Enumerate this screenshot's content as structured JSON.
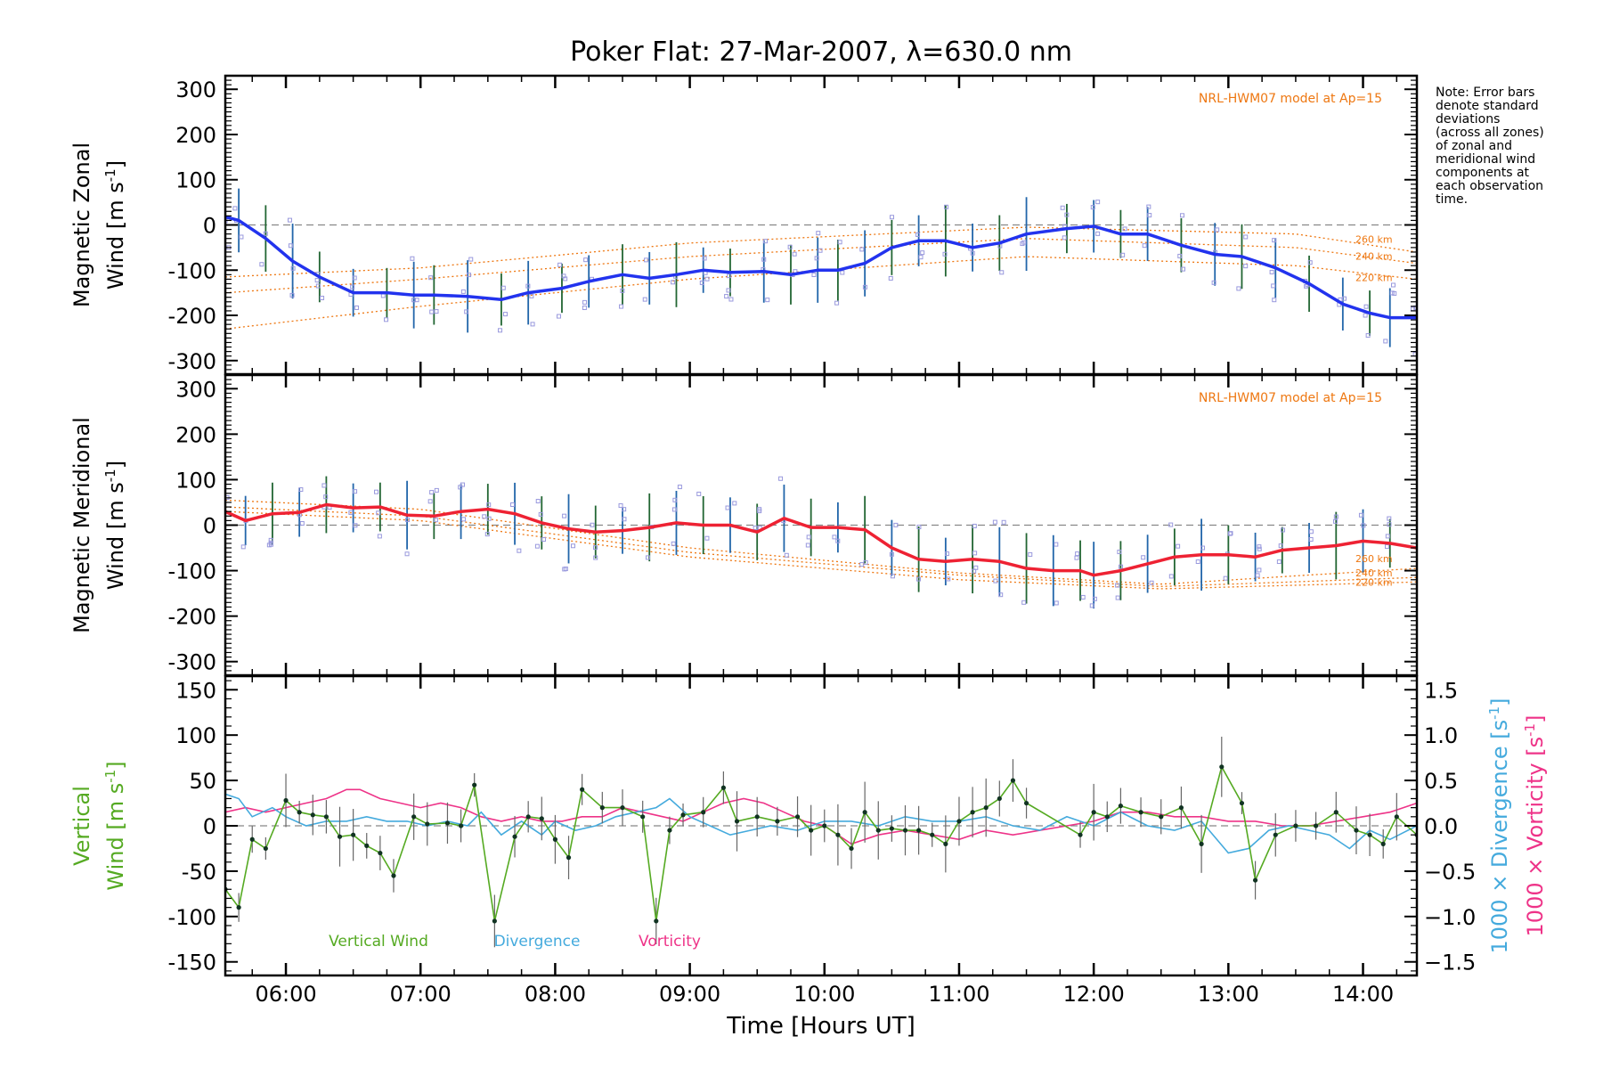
{
  "title": "Poker Flat: 27-Mar-2007, λ=630.0 nm",
  "note": [
    "Note: Error bars",
    "denote standard",
    "deviations",
    "(across all zones)",
    "of zonal and",
    "meridional wind",
    "components at",
    "each observation",
    "time."
  ],
  "xaxis": {
    "label": "Time [Hours UT]",
    "range_hours": [
      5.55,
      14.4
    ],
    "ticks": [
      {
        "v": 6,
        "t": "06:00"
      },
      {
        "v": 7,
        "t": "07:00"
      },
      {
        "v": 8,
        "t": "08:00"
      },
      {
        "v": 9,
        "t": "09:00"
      },
      {
        "v": 10,
        "t": "10:00"
      },
      {
        "v": 11,
        "t": "11:00"
      },
      {
        "v": 12,
        "t": "12:00"
      },
      {
        "v": 13,
        "t": "13:00"
      },
      {
        "v": 14,
        "t": "14:00"
      }
    ]
  },
  "colors": {
    "zonal": "#2233ee",
    "meridional": "#ee2233",
    "model": "#ee7711",
    "vertical": "#55aa22",
    "divergence": "#44aadd",
    "vorticity": "#ee3388",
    "scatter": "#9999dd",
    "errorbar_a": "#226633",
    "errorbar_b": "#2266aa"
  },
  "chart_data": [
    {
      "type": "line",
      "panel": "zonal",
      "ylabel_line1": "Magnetic Zonal",
      "ylabel_line2": "Wind [m s",
      "ylabel_sup": "-1",
      "ylabel_close": "]",
      "ylim": [
        -330,
        330
      ],
      "yticks": [
        300,
        200,
        100,
        0,
        -100,
        -200,
        -300
      ],
      "model_label": "NRL-HWM07 model at Ap=15",
      "model_alt_labels": [
        "260 km",
        "240 km",
        "220 km"
      ],
      "series": [
        {
          "name": "Zonal wind",
          "x": [
            5.55,
            5.65,
            5.85,
            6.05,
            6.25,
            6.5,
            6.75,
            6.95,
            7.1,
            7.35,
            7.6,
            7.8,
            8.05,
            8.25,
            8.5,
            8.7,
            8.9,
            9.1,
            9.3,
            9.55,
            9.75,
            9.95,
            10.1,
            10.3,
            10.5,
            10.7,
            10.9,
            11.1,
            11.3,
            11.5,
            11.8,
            12.0,
            12.2,
            12.4,
            12.65,
            12.9,
            13.1,
            13.35,
            13.6,
            13.85,
            14.05,
            14.2,
            14.4
          ],
          "y": [
            18,
            10,
            -30,
            -80,
            -115,
            -150,
            -150,
            -155,
            -155,
            -158,
            -165,
            -150,
            -140,
            -125,
            -110,
            -118,
            -110,
            -100,
            -105,
            -103,
            -110,
            -100,
            -100,
            -85,
            -50,
            -35,
            -35,
            -50,
            -40,
            -20,
            -8,
            -3,
            -20,
            -20,
            -45,
            -65,
            -70,
            -95,
            -130,
            -175,
            -195,
            -205,
            -205
          ]
        }
      ],
      "model_curves": [
        {
          "name": "260 km",
          "x": [
            5.55,
            7.0,
            9.0,
            11.5,
            13.5,
            14.4
          ],
          "y": [
            -115,
            -95,
            -40,
            -5,
            -20,
            -60
          ]
        },
        {
          "name": "240 km",
          "x": [
            5.55,
            7.0,
            9.0,
            11.5,
            13.5,
            14.4
          ],
          "y": [
            -150,
            -120,
            -70,
            -30,
            -50,
            -85
          ]
        },
        {
          "name": "220 km",
          "x": [
            5.55,
            7.0,
            9.0,
            11.5,
            13.5,
            14.4
          ],
          "y": [
            -230,
            -180,
            -120,
            -70,
            -90,
            -120
          ]
        }
      ]
    },
    {
      "type": "line",
      "panel": "meridional",
      "ylabel_line1": "Magnetic Meridional",
      "ylabel_line2": "Wind [m s",
      "ylabel_sup": "-1",
      "ylabel_close": "]",
      "ylim": [
        -330,
        330
      ],
      "yticks": [
        300,
        200,
        100,
        0,
        -100,
        -200,
        -300
      ],
      "model_label": "NRL-HWM07 model at Ap=15",
      "model_alt_labels": [
        "260 km",
        "240 km",
        "220 km"
      ],
      "series": [
        {
          "name": "Meridional wind",
          "x": [
            5.55,
            5.7,
            5.9,
            6.1,
            6.3,
            6.5,
            6.7,
            6.9,
            7.1,
            7.3,
            7.5,
            7.7,
            7.9,
            8.1,
            8.3,
            8.5,
            8.7,
            8.9,
            9.1,
            9.3,
            9.5,
            9.7,
            9.9,
            10.1,
            10.3,
            10.5,
            10.7,
            10.9,
            11.1,
            11.3,
            11.5,
            11.7,
            11.9,
            12.0,
            12.2,
            12.4,
            12.6,
            12.8,
            13.0,
            13.2,
            13.4,
            13.6,
            13.8,
            14.0,
            14.2,
            14.4
          ],
          "y": [
            30,
            10,
            25,
            28,
            45,
            38,
            40,
            22,
            20,
            30,
            35,
            25,
            5,
            -8,
            -15,
            -12,
            -5,
            5,
            0,
            0,
            -15,
            15,
            -5,
            -5,
            -10,
            -50,
            -75,
            -80,
            -75,
            -80,
            -95,
            -100,
            -100,
            -110,
            -100,
            -85,
            -70,
            -65,
            -65,
            -70,
            -55,
            -50,
            -45,
            -35,
            -40,
            -50
          ]
        }
      ],
      "model_curves": [
        {
          "name": "260 km",
          "x": [
            5.55,
            7.0,
            9.0,
            11.0,
            12.5,
            14.4
          ],
          "y": [
            55,
            35,
            -50,
            -105,
            -130,
            -95
          ]
        },
        {
          "name": "240 km",
          "x": [
            5.55,
            7.0,
            9.0,
            11.0,
            12.5,
            14.4
          ],
          "y": [
            40,
            20,
            -60,
            -110,
            -135,
            -115
          ]
        },
        {
          "name": "220 km",
          "x": [
            5.55,
            7.0,
            9.0,
            11.0,
            12.5,
            14.4
          ],
          "y": [
            30,
            10,
            -70,
            -120,
            -140,
            -125
          ]
        }
      ]
    },
    {
      "type": "line",
      "panel": "vertical",
      "ylabel_line1": "Vertical",
      "ylabel_line2": "Wind [m s",
      "ylabel_sup": "-1",
      "ylabel_close": "]",
      "ylim": [
        -165,
        165
      ],
      "yticks": [
        150,
        100,
        50,
        0,
        -50,
        -100,
        -150
      ],
      "y2lim": [
        -1.65,
        1.65
      ],
      "y2ticks": [
        1.5,
        1.0,
        0.5,
        0.0,
        -0.5,
        -1.0,
        -1.5
      ],
      "y2labels": [
        "1.5",
        "1.0",
        "0.5",
        "0.0",
        "−0.5",
        "−1.0",
        "−1.5"
      ],
      "y2label_div": "1000 × Divergence [s",
      "y2label_vor": "1000 × Vorticity [s",
      "y2label_sup": "-1",
      "y2label_close": "]",
      "legend": [
        "Vertical Wind",
        "Divergence",
        "Vorticity"
      ],
      "series": [
        {
          "name": "Vertical Wind",
          "x": [
            5.55,
            5.65,
            5.75,
            5.85,
            6.0,
            6.1,
            6.2,
            6.3,
            6.4,
            6.5,
            6.6,
            6.7,
            6.8,
            6.95,
            7.05,
            7.2,
            7.3,
            7.4,
            7.55,
            7.7,
            7.8,
            7.9,
            8.0,
            8.1,
            8.2,
            8.35,
            8.5,
            8.65,
            8.75,
            8.85,
            8.95,
            9.1,
            9.25,
            9.35,
            9.5,
            9.65,
            9.8,
            9.9,
            10.0,
            10.1,
            10.2,
            10.3,
            10.4,
            10.5,
            10.6,
            10.7,
            10.8,
            10.9,
            11.0,
            11.1,
            11.2,
            11.3,
            11.4,
            11.5,
            11.9,
            12.0,
            12.1,
            12.2,
            12.35,
            12.5,
            12.65,
            12.8,
            12.95,
            13.1,
            13.2,
            13.35,
            13.5,
            13.65,
            13.8,
            13.95,
            14.05,
            14.15,
            14.25,
            14.4
          ],
          "y": [
            -70,
            -90,
            -15,
            -25,
            28,
            15,
            12,
            10,
            -12,
            -10,
            -22,
            -30,
            -55,
            10,
            2,
            3,
            0,
            45,
            -105,
            -12,
            10,
            8,
            -15,
            -35,
            40,
            20,
            20,
            10,
            -105,
            -5,
            12,
            15,
            42,
            5,
            10,
            5,
            10,
            -5,
            0,
            -10,
            -25,
            15,
            -5,
            -3,
            -5,
            -5,
            -10,
            -20,
            5,
            15,
            20,
            30,
            50,
            25,
            -10,
            15,
            10,
            22,
            15,
            10,
            20,
            -20,
            65,
            25,
            -60,
            -10,
            0,
            0,
            15,
            -5,
            -10,
            -20,
            10,
            -10
          ]
        },
        {
          "name": "Divergence",
          "x": [
            5.55,
            5.65,
            5.75,
            5.9,
            6.0,
            6.15,
            6.3,
            6.45,
            6.6,
            6.75,
            6.9,
            7.05,
            7.2,
            7.35,
            7.45,
            7.6,
            7.75,
            7.9,
            8.0,
            8.15,
            8.3,
            8.45,
            8.6,
            8.75,
            8.85,
            9.0,
            9.15,
            9.3,
            9.45,
            9.6,
            9.8,
            10.0,
            10.2,
            10.4,
            10.6,
            10.8,
            11.0,
            11.2,
            11.4,
            11.6,
            11.8,
            12.0,
            12.2,
            12.4,
            12.6,
            12.8,
            13.0,
            13.15,
            13.3,
            13.45,
            13.6,
            13.75,
            13.9,
            14.05,
            14.2,
            14.4
          ],
          "y": [
            0.35,
            0.3,
            0.1,
            0.2,
            0.1,
            0.0,
            0.05,
            0.05,
            0.1,
            0.05,
            0.05,
            0.0,
            0.05,
            0.0,
            0.15,
            -0.1,
            0.05,
            -0.1,
            0.05,
            -0.05,
            0.0,
            0.1,
            0.15,
            0.2,
            0.3,
            0.1,
            0.0,
            -0.1,
            -0.05,
            0.0,
            -0.05,
            0.05,
            0.05,
            0.0,
            0.1,
            0.05,
            0.05,
            0.1,
            0.0,
            -0.05,
            0.1,
            0.0,
            0.15,
            0.0,
            -0.05,
            0.05,
            -0.3,
            -0.25,
            -0.05,
            0.0,
            -0.05,
            -0.1,
            -0.25,
            -0.05,
            -0.15,
            0.0
          ]
        },
        {
          "name": "Vorticity",
          "x": [
            5.55,
            5.7,
            5.85,
            6.0,
            6.15,
            6.3,
            6.45,
            6.55,
            6.7,
            6.85,
            7.0,
            7.15,
            7.3,
            7.45,
            7.6,
            7.75,
            7.9,
            8.05,
            8.2,
            8.35,
            8.5,
            8.65,
            8.8,
            8.95,
            9.1,
            9.25,
            9.4,
            9.55,
            9.7,
            9.85,
            10.0,
            10.2,
            10.4,
            10.6,
            10.8,
            11.0,
            11.2,
            11.4,
            11.6,
            11.8,
            12.0,
            12.2,
            12.4,
            12.6,
            12.8,
            13.0,
            13.2,
            13.4,
            13.6,
            13.8,
            14.0,
            14.2,
            14.4
          ],
          "y": [
            0.15,
            0.2,
            0.15,
            0.2,
            0.25,
            0.3,
            0.4,
            0.4,
            0.3,
            0.25,
            0.2,
            0.25,
            0.2,
            0.1,
            0.05,
            0.1,
            0.05,
            0.05,
            0.1,
            0.1,
            0.2,
            0.15,
            0.1,
            0.05,
            0.15,
            0.25,
            0.3,
            0.25,
            0.15,
            0.05,
            0.0,
            -0.2,
            -0.1,
            -0.05,
            -0.1,
            -0.15,
            -0.05,
            -0.1,
            -0.05,
            0.0,
            0.05,
            0.15,
            0.15,
            0.1,
            0.1,
            0.05,
            0.05,
            0.0,
            0.0,
            0.05,
            0.1,
            0.15,
            0.25
          ]
        }
      ]
    }
  ]
}
